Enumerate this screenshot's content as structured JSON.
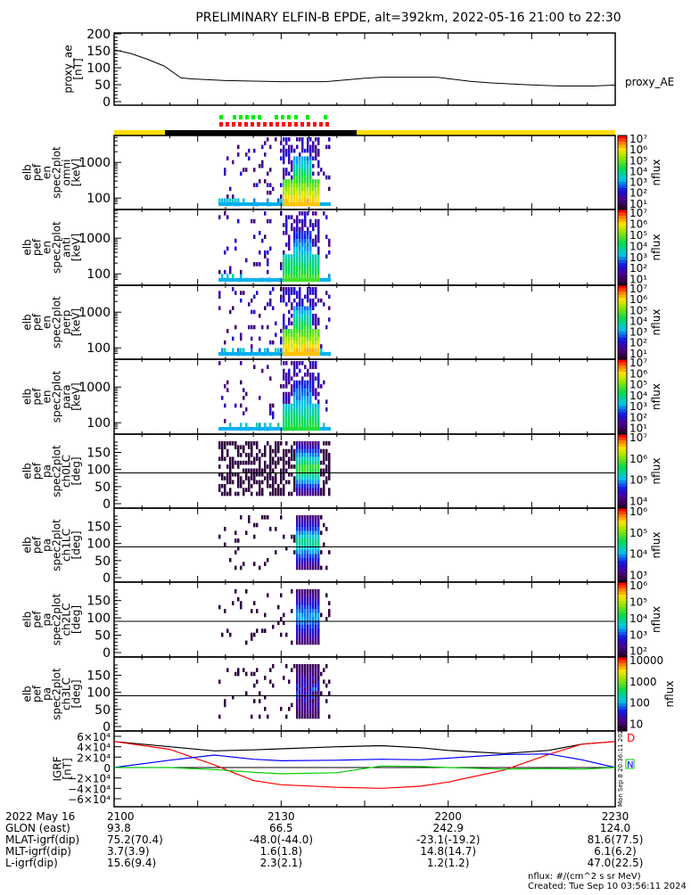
{
  "title": "PRELIMINARY ELFIN-B EPDE, alt=392km, 2022-05-16 21:00 to 22:30",
  "chart_data": [
    {
      "type": "line",
      "name": "proxy_ae",
      "ylabel": [
        "proxy_ae",
        "[nT]"
      ],
      "legend": "proxy_AE",
      "ylim": [
        0,
        200
      ],
      "yticks": [
        "0",
        "50",
        "100",
        "150",
        "200"
      ],
      "x_minutes": [
        0,
        3,
        6,
        9,
        12,
        14,
        20,
        30,
        38,
        45,
        48,
        52,
        58,
        60,
        64,
        68,
        74,
        80,
        86,
        90
      ],
      "y": [
        153,
        142,
        125,
        105,
        70,
        67,
        62,
        59,
        59,
        69,
        72,
        72,
        72,
        68,
        60,
        55,
        50,
        46,
        46,
        49
      ]
    },
    {
      "type": "heatmap",
      "panels": [
        {
          "label": [
            "elb",
            "pef",
            "en",
            "spec2plot",
            "omni",
            "[keV]"
          ],
          "kind": "energy",
          "yticks": [
            "100",
            "1000"
          ],
          "cbar": [
            "10⁷",
            "10⁶",
            "10⁵",
            "10⁴",
            "10³",
            "10²",
            "10¹"
          ],
          "strength": 1.0
        },
        {
          "label": [
            "elb",
            "pef",
            "en",
            "spec2plot",
            "anti",
            "[keV]"
          ],
          "kind": "energy",
          "yticks": [
            "100",
            "1000"
          ],
          "cbar": [
            "10⁷",
            "10⁶",
            "10⁵",
            "10⁴",
            "10³",
            "10²",
            "10¹"
          ],
          "strength": 0.7
        },
        {
          "label": [
            "elb",
            "pef",
            "en",
            "spec2plot",
            "perp",
            "[keV]"
          ],
          "kind": "energy",
          "yticks": [
            "100",
            "1000"
          ],
          "cbar": [
            "10⁷",
            "10⁶",
            "10⁵",
            "10⁴",
            "10³",
            "10²",
            "10¹"
          ],
          "strength": 1.0
        },
        {
          "label": [
            "elb",
            "pef",
            "en",
            "spec2plot",
            "para",
            "[keV]"
          ],
          "kind": "energy",
          "yticks": [
            "100",
            "1000"
          ],
          "cbar": [
            "10⁷",
            "10⁶",
            "10⁵",
            "10⁴",
            "10³",
            "10²",
            "10¹"
          ],
          "strength": 0.65
        },
        {
          "label": [
            "elb",
            "pef",
            "pa",
            "spec2plot",
            "ch0LC",
            "[deg]"
          ],
          "kind": "pa",
          "yticks": [
            "0",
            "50",
            "100",
            "150"
          ],
          "cbar": [
            "10⁷",
            "10⁶",
            "10⁵",
            "10⁴"
          ],
          "strength": 1.0
        },
        {
          "label": [
            "elb",
            "pef",
            "pa",
            "spec2plot",
            "ch1LC",
            "[deg]"
          ],
          "kind": "pa",
          "yticks": [
            "0",
            "50",
            "100",
            "150"
          ],
          "cbar": [
            "10⁶",
            "10⁵",
            "10⁴",
            "10³"
          ],
          "strength": 0.8
        },
        {
          "label": [
            "elb",
            "pef",
            "pa",
            "spec2plot",
            "ch2LC",
            "[deg]"
          ],
          "kind": "pa",
          "yticks": [
            "0",
            "50",
            "100",
            "150"
          ],
          "cbar": [
            "10⁶",
            "10⁵",
            "10⁴",
            "10³",
            "10²"
          ],
          "strength": 0.6
        },
        {
          "label": [
            "elb",
            "pef",
            "pa",
            "spec2plot",
            "ch3LC",
            "[deg]"
          ],
          "kind": "pa",
          "yticks": [
            "0",
            "50",
            "100",
            "150"
          ],
          "cbar": [
            "10000",
            "1000",
            "100",
            "10"
          ],
          "strength": 0.4
        }
      ],
      "cbar_label": "nflux"
    },
    {
      "type": "line",
      "name": "IGRF",
      "ylabel": [
        "IGRF",
        "[nT]"
      ],
      "ylim": [
        -60000,
        60000
      ],
      "yticks": [
        "6×10⁴",
        "4×10⁴",
        "2×10⁴",
        "0",
        "−2×10⁴",
        "−4×10⁴",
        "−6×10⁴"
      ],
      "x_minutes": [
        0,
        10,
        18,
        25,
        30,
        40,
        48,
        55,
        60,
        70,
        78,
        84,
        90
      ],
      "series": [
        {
          "name": "total",
          "color": "#000000",
          "values": [
            50000,
            40000,
            32000,
            34000,
            36000,
            40000,
            42000,
            38000,
            33000,
            27000,
            33000,
            45000,
            50000
          ]
        },
        {
          "name": "D",
          "color": "#ff0000",
          "values": [
            50000,
            35000,
            5000,
            -25000,
            -33000,
            -38000,
            -40000,
            -36000,
            -28000,
            -5000,
            25000,
            45000,
            50000
          ]
        },
        {
          "name": "N",
          "color": "#0000ff",
          "values": [
            0,
            14000,
            24000,
            16000,
            13000,
            14000,
            16000,
            15000,
            18000,
            25000,
            26000,
            15000,
            0
          ]
        },
        {
          "name": "Z",
          "color": "#00cc00",
          "values": [
            0,
            0,
            -4000,
            -9000,
            -12000,
            -10000,
            3000,
            2000,
            0,
            -3000,
            -2000,
            -3000,
            0
          ]
        }
      ],
      "side_labels": [
        "D",
        "N"
      ],
      "side_text": "Mon Sep 8 20:36:11 2024"
    }
  ],
  "ephemeris": {
    "rows": [
      {
        "label": "2022 May 16",
        "values": [
          "2100",
          "2130",
          "2200",
          "2230"
        ]
      },
      {
        "label": "GLON (east)",
        "values": [
          "93.8",
          "66.5",
          "242.9",
          "124.0"
        ]
      },
      {
        "label": "MLAT-igrf(dip)",
        "values": [
          "75.2(70.4)",
          "-48.0(-44.0)",
          "-23.1(-19.2)",
          "81.6(77.5)"
        ]
      },
      {
        "label": "MLT-igrf(dip)",
        "values": [
          "3.7(3.9)",
          "1.6(1.8)",
          "14.8(14.7)",
          "6.1(6.2)"
        ]
      },
      {
        "label": "L-igrf(dip)",
        "values": [
          "15.6(9.4)",
          "2.3(2.1)",
          "1.2(1.2)",
          "47.0(22.5)"
        ]
      }
    ]
  },
  "footer": {
    "units": "nflux: #/(cm^2 s sr MeV)",
    "created": "Created: Tue Sep 10 03:56:11 2024"
  },
  "colors": {
    "yellow": "#ffdd00",
    "green": "#00ee00",
    "red": "#ff0000"
  }
}
